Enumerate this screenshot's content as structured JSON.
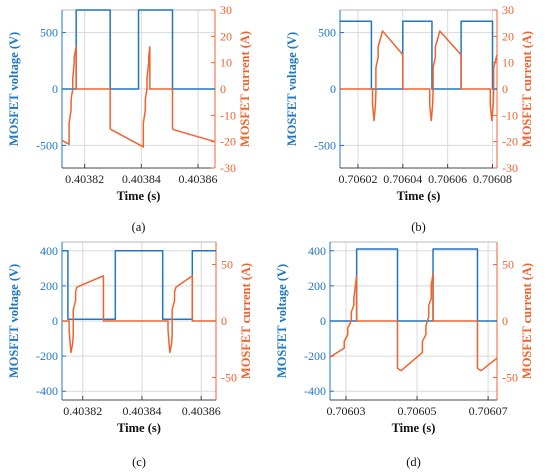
{
  "colors": {
    "voltage": "#1f77c4",
    "current": "#f0622d",
    "grid": "#d9d9d9",
    "axis": "#444444"
  },
  "chart_data": [
    {
      "panel": "a",
      "caption": "(a)",
      "type": "line",
      "xlabel": "Time (s)",
      "ylabel_left": "MOSFET voltage (V)",
      "ylabel_right": "MOSFET current (A)",
      "xlim": [
        0.403812,
        0.403866
      ],
      "ylim_left": [
        -700,
        700
      ],
      "ylim_right": [
        -30,
        30
      ],
      "xticks": [
        0.40382,
        0.40384,
        0.40386
      ],
      "xtick_labels": [
        "0.40382",
        "0.40384",
        "0.40386"
      ],
      "yticks_left": [
        -500,
        0,
        500
      ],
      "yticks_right": [
        -30,
        -20,
        -10,
        0,
        10,
        20,
        30
      ],
      "grid": true,
      "series": [
        {
          "axis": "left",
          "x": [
            0.403812,
            0.403817,
            0.403817,
            0.403829,
            0.403829,
            0.403839,
            0.403839,
            0.403851,
            0.403851,
            0.403866
          ],
          "y": [
            0,
            0,
            700,
            700,
            0,
            0,
            700,
            700,
            0,
            0
          ]
        },
        {
          "axis": "right",
          "x": [
            0.403812,
            0.4038145,
            0.4038145,
            0.4038152,
            0.4038152,
            0.4038158,
            0.4038158,
            0.4038163,
            0.4038163,
            0.403817,
            0.403817,
            0.403829,
            0.403829,
            0.4038295,
            0.403839,
            0.4038407,
            0.4038407,
            0.4038414,
            0.4038414,
            0.403842,
            0.403842,
            0.4038426,
            0.4038426,
            0.403843,
            0.403843,
            0.403851,
            0.403851,
            0.4038515,
            0.403866
          ],
          "y": [
            -19.5,
            -21,
            -13,
            -8,
            -4,
            0,
            4,
            10,
            12,
            16,
            0,
            0,
            -15,
            -15.5,
            -21,
            -22,
            -13,
            -8,
            -4,
            0,
            4,
            10,
            12,
            16,
            0,
            0,
            -15,
            -15.5,
            -20
          ]
        }
      ]
    },
    {
      "panel": "b",
      "caption": "(b)",
      "type": "line",
      "xlabel": "Time (s)",
      "ylabel_left": "MOSFET voltage (V)",
      "ylabel_right": "MOSFET current (A)",
      "xlim": [
        0.706012,
        0.706082
      ],
      "ylim_left": [
        -700,
        700
      ],
      "ylim_right": [
        -30,
        30
      ],
      "xticks": [
        0.70602,
        0.70604,
        0.70606,
        0.70608
      ],
      "xtick_labels": [
        "0.70602",
        "0.70604",
        "0.70606",
        "0.70608"
      ],
      "yticks_left": [
        -500,
        0,
        500
      ],
      "yticks_right": [
        -30,
        -20,
        -10,
        0,
        10,
        20,
        30
      ],
      "grid": true,
      "series": [
        {
          "axis": "left",
          "x": [
            0.706012,
            0.706026,
            0.706026,
            0.70604,
            0.70604,
            0.706053,
            0.706053,
            0.706066,
            0.706066,
            0.70608,
            0.70608,
            0.706082
          ],
          "y": [
            600,
            600,
            0,
            0,
            600,
            600,
            0,
            0,
            600,
            600,
            0,
            0
          ]
        },
        {
          "axis": "right",
          "x": [
            0.706012,
            0.7060265,
            0.7060265,
            0.7060272,
            0.7060278,
            0.706028,
            0.706028,
            0.706029,
            0.706029,
            0.706031,
            0.70604,
            0.70604,
            0.706052,
            0.706052,
            0.7060527,
            0.7060533,
            0.7060535,
            0.7060535,
            0.7060545,
            0.7060545,
            0.7060565,
            0.706066,
            0.706066,
            0.706079,
            0.706079,
            0.7060797,
            0.7060803,
            0.7060805,
            0.7060805,
            0.706082
          ],
          "y": [
            0,
            0,
            -6,
            -12,
            -6,
            -1,
            8,
            12,
            16,
            22,
            13,
            0,
            0,
            -6,
            -12,
            -6,
            -1,
            8,
            12,
            16,
            22,
            13,
            0,
            0,
            -6,
            -12,
            -6,
            -1,
            8,
            13
          ]
        }
      ]
    },
    {
      "panel": "c",
      "caption": "(c)",
      "type": "line",
      "xlabel": "Time (s)",
      "ylabel_left": "MOSFET voltage (V)",
      "ylabel_right": "MOSFET current (A)",
      "xlim": [
        0.403813,
        0.403865
      ],
      "ylim_left": [
        -450,
        450
      ],
      "ylim_right": [
        -70,
        70
      ],
      "xticks": [
        0.40382,
        0.40384,
        0.40386
      ],
      "xtick_labels": [
        "0.40382",
        "0.40384",
        "0.40386"
      ],
      "yticks_left": [
        -400,
        -200,
        0,
        200,
        400
      ],
      "yticks_right": [
        -50,
        0,
        50
      ],
      "grid": true,
      "series": [
        {
          "axis": "left",
          "x": [
            0.403813,
            0.403815,
            0.403815,
            0.403831,
            0.403831,
            0.403847,
            0.403847,
            0.403857,
            0.403857,
            0.403865
          ],
          "y": [
            400,
            400,
            10,
            10,
            400,
            400,
            10,
            10,
            400,
            400
          ]
        },
        {
          "axis": "right",
          "x": [
            0.403813,
            0.4038154,
            0.4038154,
            0.403816,
            0.4038166,
            0.4038168,
            0.4038168,
            0.4038176,
            0.4038176,
            0.403818,
            0.403827,
            0.403827,
            0.4038488,
            0.4038488,
            0.4038494,
            0.40385,
            0.4038502,
            0.4038502,
            0.403851,
            0.403851,
            0.4038515,
            0.403857,
            0.403857,
            0.403865
          ],
          "y": [
            0,
            0,
            -8,
            -28,
            -20,
            -12,
            10,
            18,
            26,
            30,
            40,
            0,
            0,
            -8,
            -28,
            -20,
            -12,
            10,
            18,
            26,
            30,
            40,
            0,
            0
          ]
        }
      ]
    },
    {
      "panel": "d",
      "caption": "(d)",
      "type": "line",
      "xlabel": "Time (s)",
      "ylabel_left": "MOSFET voltage (V)",
      "ylabel_right": "MOSFET current (A)",
      "xlim": [
        0.7060255,
        0.7060725
      ],
      "ylim_left": [
        -450,
        450
      ],
      "ylim_right": [
        -70,
        70
      ],
      "xticks": [
        0.70603,
        0.70605,
        0.70607
      ],
      "xtick_labels": [
        "0.70603",
        "0.70605",
        "0.70607"
      ],
      "yticks_left": [
        -400,
        -200,
        0,
        200,
        400
      ],
      "yticks_right": [
        -50,
        0,
        50
      ],
      "grid": true,
      "series": [
        {
          "axis": "left",
          "x": [
            0.7060255,
            0.706033,
            0.706033,
            0.7060445,
            0.7060445,
            0.7060545,
            0.7060545,
            0.706067,
            0.706067,
            0.7060725
          ],
          "y": [
            0,
            0,
            410,
            410,
            0,
            0,
            410,
            410,
            0,
            0
          ]
        },
        {
          "axis": "right",
          "x": [
            0.7060255,
            0.7060295,
            0.7060295,
            0.7060305,
            0.7060305,
            0.7060315,
            0.7060315,
            0.7060322,
            0.7060322,
            0.706033,
            0.706033,
            0.7060445,
            0.7060445,
            0.7060455,
            0.7060515,
            0.7060515,
            0.7060525,
            0.7060525,
            0.7060533,
            0.7060533,
            0.706054,
            0.706054,
            0.7060545,
            0.7060545,
            0.706067,
            0.706067,
            0.706068,
            0.7060725
          ],
          "y": [
            -32,
            -24,
            -18,
            -12,
            -6,
            0,
            8,
            14,
            20,
            40,
            0,
            0,
            -42,
            -44,
            -28,
            -18,
            -12,
            -4,
            4,
            14,
            20,
            32,
            42,
            0,
            0,
            -42,
            -44,
            -33
          ]
        }
      ]
    }
  ]
}
